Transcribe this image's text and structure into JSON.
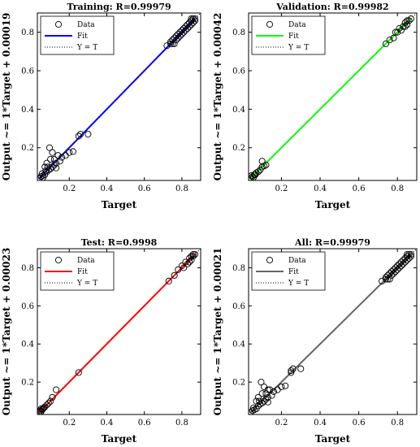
{
  "figure_colors": {
    "background": "#ffffff",
    "axes": "#000000",
    "marker": "#000000"
  },
  "chart_data": [
    {
      "type": "scatter",
      "title": "Training: R=0.99979",
      "xlabel": "Target",
      "ylabel": "Output ~= 1*Target + 0.00019",
      "xlim": [
        0.03,
        0.9
      ],
      "ylim": [
        0.03,
        0.9
      ],
      "xticks": [
        0.2,
        0.4,
        0.6,
        0.8
      ],
      "xtick_labels": [
        "0.2",
        "0.4",
        "0.6",
        "0.8"
      ],
      "yticks": [
        0.2,
        0.4,
        0.6,
        0.8
      ],
      "ytick_labels": [
        "0.2",
        "0.4",
        "0.6",
        "0.8"
      ],
      "grid": false,
      "legend_position": "top-left",
      "fit_color": "#0000ff",
      "fit_line": {
        "slope": 1,
        "intercept": 0.00019
      },
      "series": [
        {
          "name": "Data",
          "kind": "marker",
          "points": [
            [
              0.04,
              0.04
            ],
            [
              0.05,
              0.05
            ],
            [
              0.06,
              0.055
            ],
            [
              0.055,
              0.065
            ],
            [
              0.07,
              0.06
            ],
            [
              0.08,
              0.075
            ],
            [
              0.09,
              0.085
            ],
            [
              0.1,
              0.09
            ],
            [
              0.085,
              0.1
            ],
            [
              0.11,
              0.1
            ],
            [
              0.12,
              0.11
            ],
            [
              0.13,
              0.12
            ],
            [
              0.1,
              0.14
            ],
            [
              0.15,
              0.13
            ],
            [
              0.14,
              0.16
            ],
            [
              0.16,
              0.15
            ],
            [
              0.18,
              0.16
            ],
            [
              0.095,
              0.2
            ],
            [
              0.11,
              0.175
            ],
            [
              0.12,
              0.14
            ],
            [
              0.13,
              0.095
            ],
            [
              0.2,
              0.175
            ],
            [
              0.22,
              0.18
            ],
            [
              0.25,
              0.26
            ],
            [
              0.26,
              0.27
            ],
            [
              0.3,
              0.27
            ],
            [
              0.07,
              0.1
            ],
            [
              0.08,
              0.12
            ],
            [
              0.06,
              0.045
            ],
            [
              0.075,
              0.08
            ],
            [
              0.72,
              0.73
            ],
            [
              0.74,
              0.74
            ],
            [
              0.75,
              0.76
            ],
            [
              0.76,
              0.74
            ],
            [
              0.77,
              0.78
            ],
            [
              0.78,
              0.77
            ],
            [
              0.79,
              0.8
            ],
            [
              0.8,
              0.79
            ],
            [
              0.81,
              0.82
            ],
            [
              0.82,
              0.81
            ],
            [
              0.83,
              0.84
            ],
            [
              0.84,
              0.83
            ],
            [
              0.85,
              0.86
            ],
            [
              0.86,
              0.85
            ],
            [
              0.87,
              0.87
            ],
            [
              0.86,
              0.87
            ],
            [
              0.85,
              0.84
            ],
            [
              0.84,
              0.85
            ],
            [
              0.83,
              0.82
            ],
            [
              0.82,
              0.83
            ],
            [
              0.81,
              0.8
            ],
            [
              0.8,
              0.81
            ],
            [
              0.79,
              0.78
            ],
            [
              0.78,
              0.79
            ],
            [
              0.77,
              0.76
            ],
            [
              0.76,
              0.77
            ],
            [
              0.75,
              0.74
            ],
            [
              0.74,
              0.75
            ],
            [
              0.87,
              0.86
            ],
            [
              0.85,
              0.87
            ]
          ]
        },
        {
          "name": "Fit",
          "kind": "fit"
        },
        {
          "name": "Y = T",
          "kind": "identity"
        }
      ]
    },
    {
      "type": "scatter",
      "title": "Validation: R=0.99982",
      "xlabel": "Target",
      "ylabel": "Output ~= 1*Target + 0.00042",
      "xlim": [
        0.03,
        0.9
      ],
      "ylim": [
        0.03,
        0.9
      ],
      "xticks": [
        0.2,
        0.4,
        0.6,
        0.8
      ],
      "xtick_labels": [
        "0.2",
        "0.4",
        "0.6",
        "0.8"
      ],
      "yticks": [
        0.2,
        0.4,
        0.6,
        0.8
      ],
      "ytick_labels": [
        "0.2",
        "0.4",
        "0.6",
        "0.8"
      ],
      "grid": false,
      "legend_position": "top-left",
      "fit_color": "#00ff00",
      "fit_line": {
        "slope": 1,
        "intercept": 0.00042
      },
      "series": [
        {
          "name": "Data",
          "kind": "marker",
          "points": [
            [
              0.04,
              0.04
            ],
            [
              0.05,
              0.05
            ],
            [
              0.055,
              0.045
            ],
            [
              0.06,
              0.06
            ],
            [
              0.07,
              0.07
            ],
            [
              0.08,
              0.075
            ],
            [
              0.09,
              0.085
            ],
            [
              0.1,
              0.1
            ],
            [
              0.11,
              0.105
            ],
            [
              0.12,
              0.11
            ],
            [
              0.1,
              0.13
            ],
            [
              0.045,
              0.055
            ],
            [
              0.065,
              0.06
            ],
            [
              0.74,
              0.74
            ],
            [
              0.76,
              0.76
            ],
            [
              0.78,
              0.77
            ],
            [
              0.8,
              0.8
            ],
            [
              0.81,
              0.82
            ],
            [
              0.82,
              0.81
            ],
            [
              0.83,
              0.83
            ],
            [
              0.84,
              0.85
            ],
            [
              0.85,
              0.84
            ],
            [
              0.86,
              0.86
            ],
            [
              0.87,
              0.87
            ],
            [
              0.85,
              0.86
            ],
            [
              0.84,
              0.83
            ],
            [
              0.79,
              0.8
            ]
          ]
        },
        {
          "name": "Fit",
          "kind": "fit"
        },
        {
          "name": "Y = T",
          "kind": "identity"
        }
      ]
    },
    {
      "type": "scatter",
      "title": "Test: R=0.9998",
      "xlabel": "Target",
      "ylabel": "Output ~= 1*Target + 0.00023",
      "xlim": [
        0.03,
        0.9
      ],
      "ylim": [
        0.03,
        0.9
      ],
      "xticks": [
        0.2,
        0.4,
        0.6,
        0.8
      ],
      "xtick_labels": [
        "0.2",
        "0.4",
        "0.6",
        "0.8"
      ],
      "yticks": [
        0.2,
        0.4,
        0.6,
        0.8
      ],
      "ytick_labels": [
        "0.2",
        "0.4",
        "0.6",
        "0.8"
      ],
      "grid": false,
      "legend_position": "top-left",
      "fit_color": "#ff0000",
      "fit_line": {
        "slope": 1,
        "intercept": 0.00023
      },
      "series": [
        {
          "name": "Data",
          "kind": "marker",
          "points": [
            [
              0.04,
              0.04
            ],
            [
              0.05,
              0.045
            ],
            [
              0.055,
              0.055
            ],
            [
              0.06,
              0.06
            ],
            [
              0.065,
              0.065
            ],
            [
              0.07,
              0.07
            ],
            [
              0.08,
              0.08
            ],
            [
              0.09,
              0.09
            ],
            [
              0.1,
              0.1
            ],
            [
              0.11,
              0.12
            ],
            [
              0.13,
              0.16
            ],
            [
              0.25,
              0.25
            ],
            [
              0.045,
              0.05
            ],
            [
              0.05,
              0.06
            ],
            [
              0.73,
              0.73
            ],
            [
              0.76,
              0.76
            ],
            [
              0.78,
              0.79
            ],
            [
              0.8,
              0.81
            ],
            [
              0.81,
              0.8
            ],
            [
              0.82,
              0.83
            ],
            [
              0.83,
              0.82
            ],
            [
              0.84,
              0.85
            ],
            [
              0.85,
              0.84
            ],
            [
              0.86,
              0.86
            ],
            [
              0.87,
              0.87
            ],
            [
              0.86,
              0.87
            ],
            [
              0.84,
              0.83
            ],
            [
              0.85,
              0.86
            ]
          ]
        },
        {
          "name": "Fit",
          "kind": "fit"
        },
        {
          "name": "Y = T",
          "kind": "identity"
        }
      ]
    },
    {
      "type": "scatter",
      "title": "All: R=0.99979",
      "xlabel": "Target",
      "ylabel": "Output ~= 1*Target + 0.00021",
      "xlim": [
        0.03,
        0.9
      ],
      "ylim": [
        0.03,
        0.9
      ],
      "xticks": [
        0.2,
        0.4,
        0.6,
        0.8
      ],
      "xtick_labels": [
        "0.2",
        "0.4",
        "0.6",
        "0.8"
      ],
      "yticks": [
        0.2,
        0.4,
        0.6,
        0.8
      ],
      "ytick_labels": [
        "0.2",
        "0.4",
        "0.6",
        "0.8"
      ],
      "grid": false,
      "legend_position": "top-left",
      "fit_color": "#666666",
      "fit_line": {
        "slope": 1,
        "intercept": 0.00021
      },
      "series": [
        {
          "name": "Data",
          "kind": "marker",
          "points": [
            [
              0.04,
              0.04
            ],
            [
              0.05,
              0.05
            ],
            [
              0.06,
              0.055
            ],
            [
              0.055,
              0.065
            ],
            [
              0.07,
              0.06
            ],
            [
              0.08,
              0.075
            ],
            [
              0.09,
              0.085
            ],
            [
              0.1,
              0.09
            ],
            [
              0.085,
              0.1
            ],
            [
              0.11,
              0.1
            ],
            [
              0.12,
              0.11
            ],
            [
              0.13,
              0.12
            ],
            [
              0.1,
              0.14
            ],
            [
              0.15,
              0.13
            ],
            [
              0.14,
              0.16
            ],
            [
              0.16,
              0.15
            ],
            [
              0.18,
              0.16
            ],
            [
              0.095,
              0.2
            ],
            [
              0.11,
              0.175
            ],
            [
              0.12,
              0.14
            ],
            [
              0.13,
              0.095
            ],
            [
              0.2,
              0.175
            ],
            [
              0.22,
              0.18
            ],
            [
              0.25,
              0.26
            ],
            [
              0.26,
              0.27
            ],
            [
              0.3,
              0.27
            ],
            [
              0.25,
              0.25
            ],
            [
              0.13,
              0.16
            ],
            [
              0.07,
              0.1
            ],
            [
              0.08,
              0.12
            ],
            [
              0.72,
              0.73
            ],
            [
              0.74,
              0.74
            ],
            [
              0.75,
              0.76
            ],
            [
              0.76,
              0.74
            ],
            [
              0.77,
              0.78
            ],
            [
              0.78,
              0.77
            ],
            [
              0.79,
              0.8
            ],
            [
              0.8,
              0.79
            ],
            [
              0.81,
              0.82
            ],
            [
              0.82,
              0.81
            ],
            [
              0.83,
              0.84
            ],
            [
              0.84,
              0.83
            ],
            [
              0.85,
              0.86
            ],
            [
              0.86,
              0.85
            ],
            [
              0.87,
              0.87
            ],
            [
              0.86,
              0.87
            ],
            [
              0.85,
              0.84
            ],
            [
              0.84,
              0.85
            ],
            [
              0.83,
              0.82
            ],
            [
              0.82,
              0.83
            ],
            [
              0.81,
              0.8
            ],
            [
              0.8,
              0.81
            ],
            [
              0.79,
              0.78
            ],
            [
              0.78,
              0.79
            ],
            [
              0.77,
              0.76
            ],
            [
              0.76,
              0.77
            ],
            [
              0.75,
              0.74
            ],
            [
              0.74,
              0.75
            ],
            [
              0.87,
              0.86
            ],
            [
              0.85,
              0.87
            ]
          ]
        },
        {
          "name": "Fit",
          "kind": "fit"
        },
        {
          "name": "Y = T",
          "kind": "identity"
        }
      ]
    }
  ]
}
